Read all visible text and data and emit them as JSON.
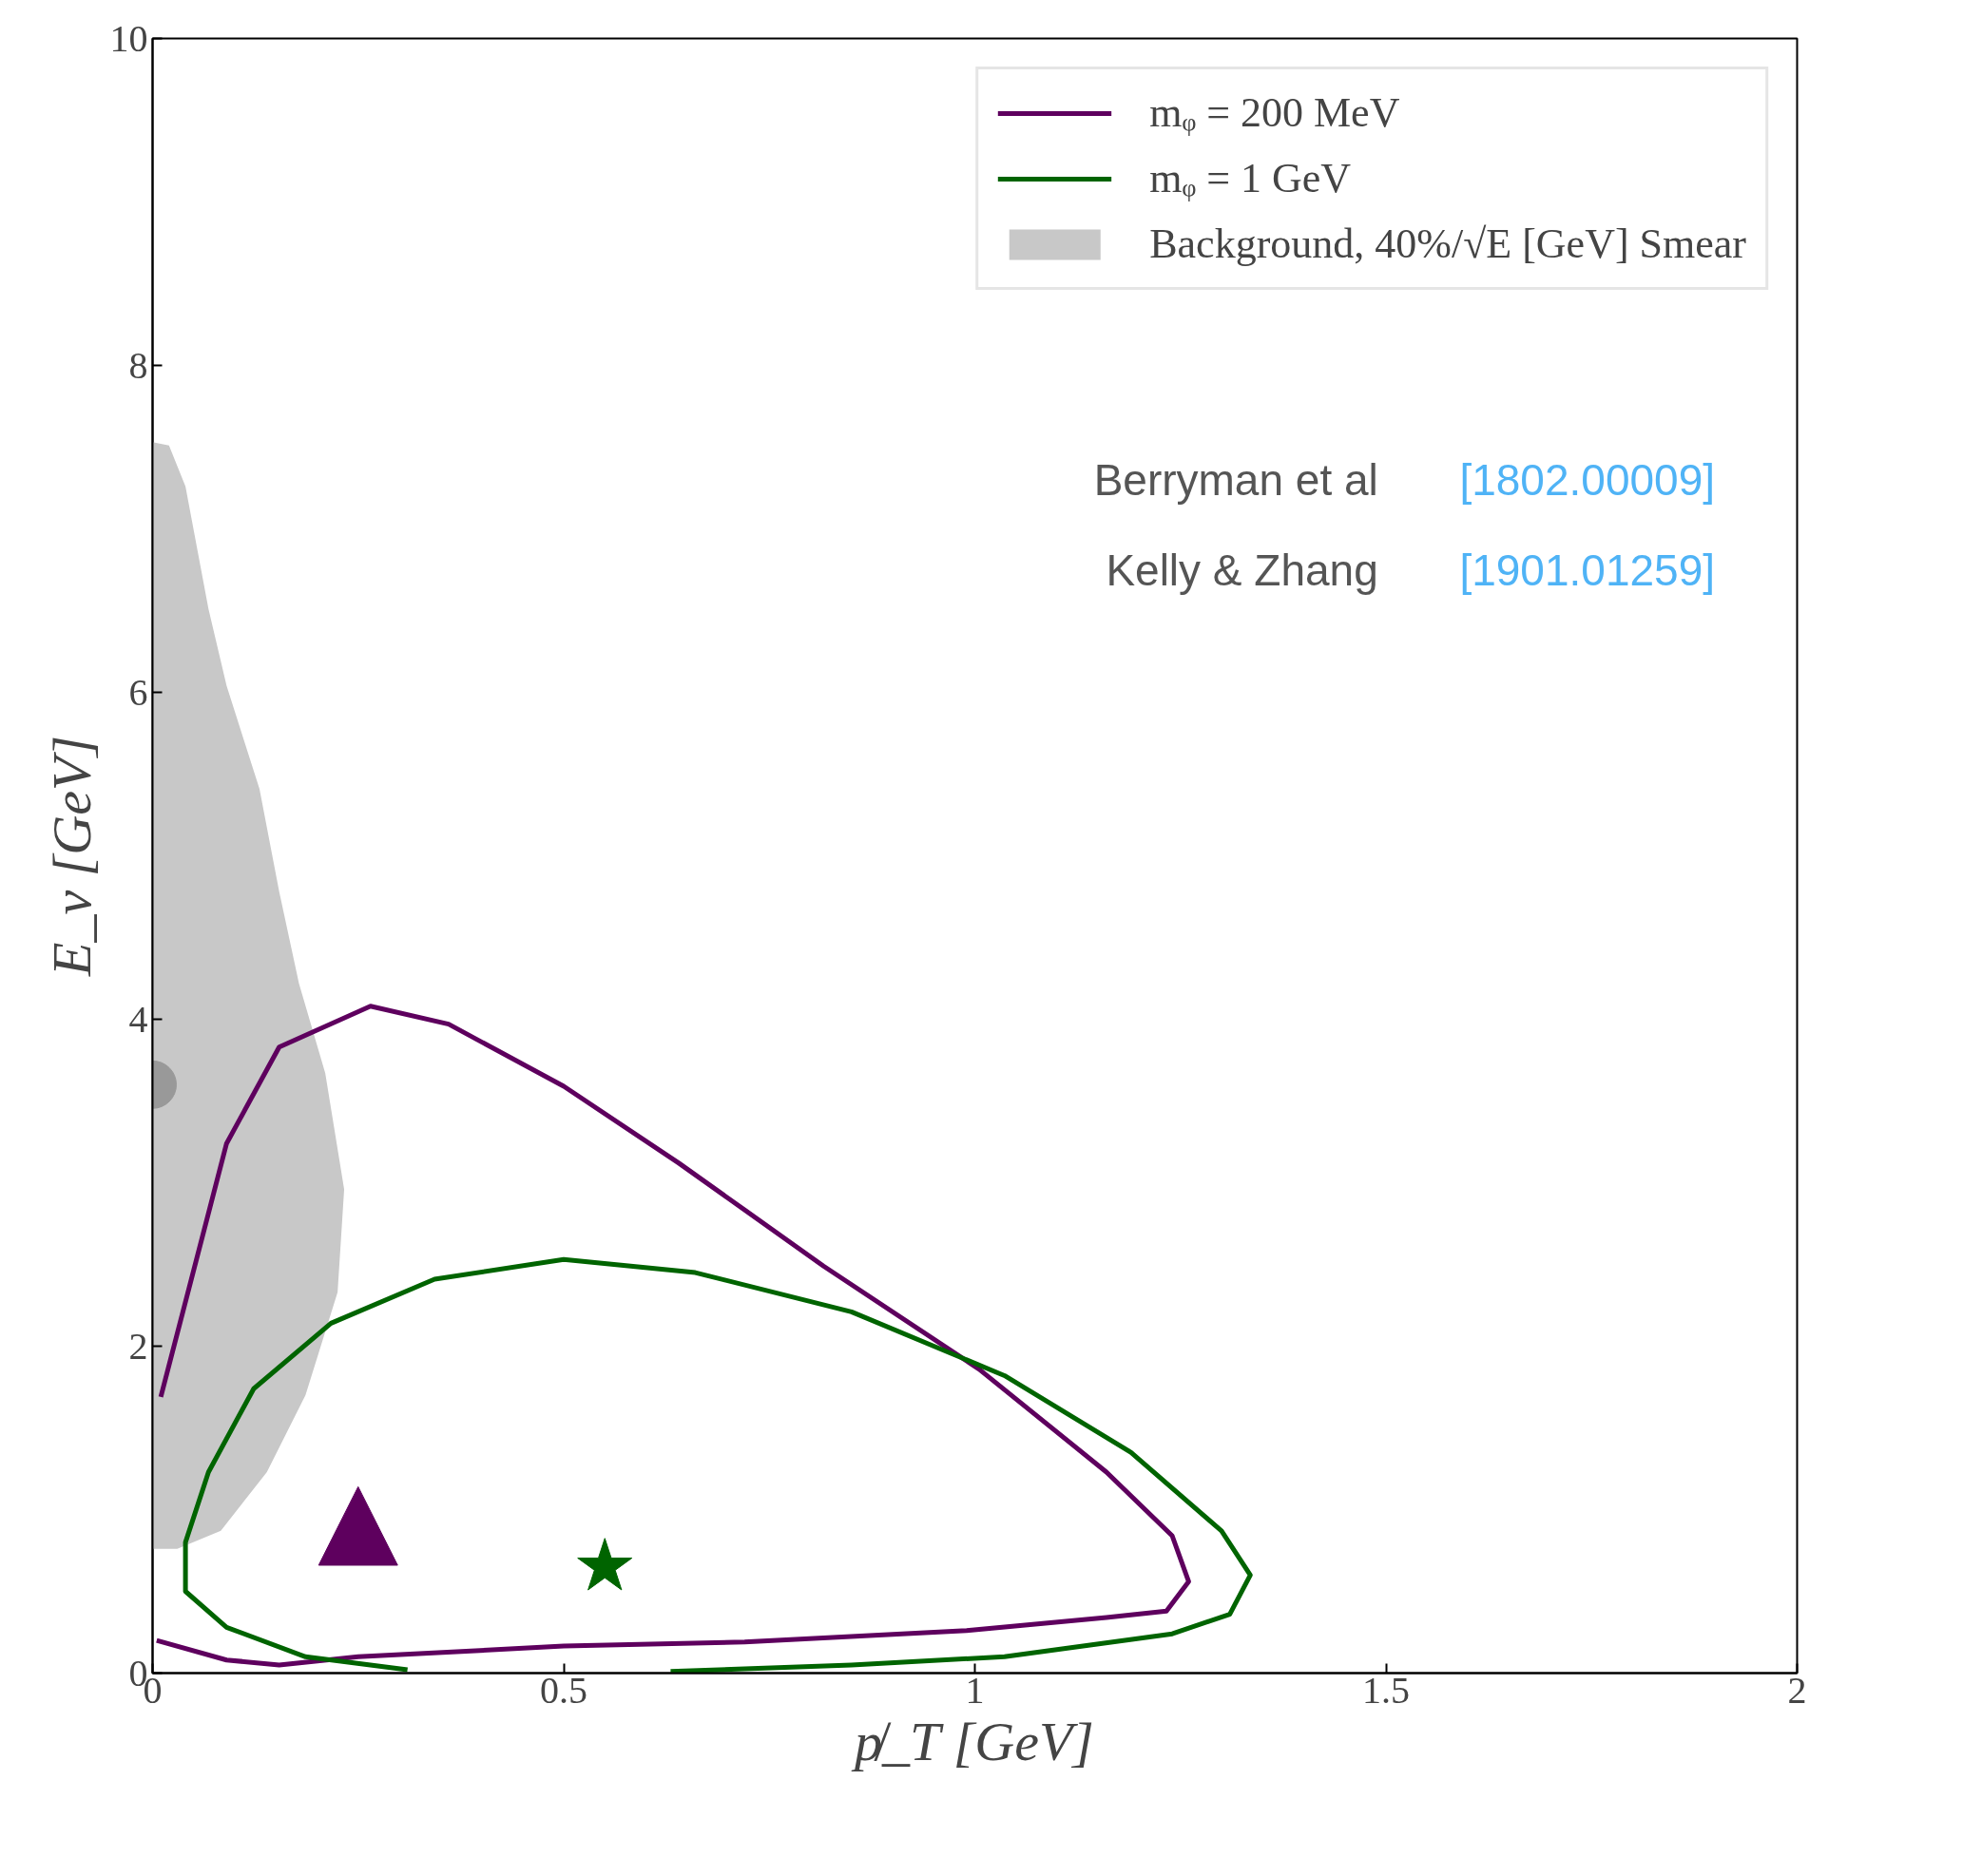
{
  "chart_data": {
    "type": "line",
    "xlabel": "p̸_T [GeV]",
    "ylabel": "E_ν [GeV]",
    "xlim": [
      0,
      2
    ],
    "ylim": [
      0,
      10
    ],
    "xticks": [
      0,
      0.5,
      1,
      1.5,
      2
    ],
    "yticks": [
      0,
      2,
      4,
      6,
      8,
      10
    ],
    "grid": false,
    "legend": "top right",
    "annotations": [
      "Berryman et al",
      "[1802.00009]",
      "Kelly & Zhang",
      "[1901.01259]"
    ],
    "series": [
      {
        "name": "mᵩ = 200 MeV",
        "color": "#5e005e",
        "x": [
          0.01,
          0.09,
          0.154,
          0.265,
          0.36,
          0.5,
          0.64,
          0.816,
          1.005,
          1.16,
          1.24,
          1.26,
          1.233,
          1.16,
          0.99,
          0.72,
          0.5,
          0.25,
          0.154,
          0.09,
          0.005
        ],
        "values": [
          1.69,
          3.24,
          3.83,
          4.08,
          3.97,
          3.59,
          3.12,
          2.49,
          1.86,
          1.23,
          0.84,
          0.56,
          0.38,
          0.34,
          0.26,
          0.19,
          0.165,
          0.1,
          0.05,
          0.08,
          0.2
        ]
      },
      {
        "name": "mᵩ = 1 GeV",
        "color": "#006400",
        "x": [
          0.31,
          0.186,
          0.09,
          0.04,
          0.04,
          0.068,
          0.123,
          0.217,
          0.343,
          0.5,
          0.66,
          0.85,
          1.036,
          1.19,
          1.3,
          1.335,
          1.31,
          1.24,
          1.036,
          0.85,
          0.63
        ],
        "values": [
          0.02,
          0.1,
          0.28,
          0.5,
          0.8,
          1.23,
          1.74,
          2.14,
          2.41,
          2.53,
          2.45,
          2.21,
          1.82,
          1.35,
          0.87,
          0.6,
          0.36,
          0.24,
          0.1,
          0.05,
          0.01
        ]
      },
      {
        "name": "Background, 40%/√E [GeV] Smear",
        "type": "area",
        "color": "#c8c8c8",
        "x": [
          0,
          0.02,
          0.04,
          0.068,
          0.09,
          0.13,
          0.154,
          0.178,
          0.21,
          0.233,
          0.225,
          0.186,
          0.139,
          0.083,
          0.03,
          0
        ],
        "values": [
          7.53,
          7.51,
          7.26,
          6.51,
          6.04,
          5.41,
          4.78,
          4.22,
          3.67,
          2.96,
          2.33,
          1.7,
          1.23,
          0.87,
          0.76,
          0.76
        ]
      },
      {
        "type": "scatter",
        "marker": "circle",
        "color": "#999999",
        "x": [
          0
        ],
        "values": [
          3.6
        ]
      },
      {
        "type": "scatter",
        "marker": "triangle",
        "color": "#5e005e",
        "x": [
          0.25
        ],
        "values": [
          0.9
        ]
      },
      {
        "type": "scatter",
        "marker": "star",
        "color": "#006400",
        "x": [
          0.55
        ],
        "values": [
          0.65
        ]
      }
    ]
  }
}
